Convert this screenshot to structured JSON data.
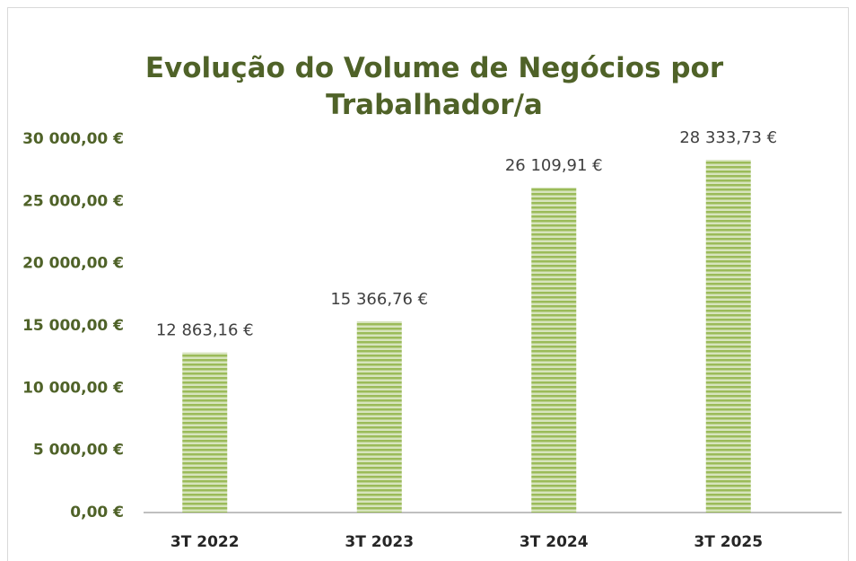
{
  "chart_data": {
    "type": "bar",
    "title": "Evolução do Volume de Negócios por Trabalhador/a",
    "categories": [
      "3T 2022",
      "3T 2023",
      "3T 2024",
      "3T 2025"
    ],
    "values": [
      12863.16,
      15366.76,
      26109.91,
      28333.73
    ],
    "value_labels": [
      "12 863,16 €",
      "15 366,76 €",
      "26 109,91 €",
      "28 333,73 €"
    ],
    "color": "#9bbb59",
    "ylim": [
      0,
      30000
    ],
    "yticks": [
      {
        "value": 0,
        "label": "0,00 €"
      },
      {
        "value": 5000,
        "label": "5 000,00 €"
      },
      {
        "value": 10000,
        "label": "10 000,00 €"
      },
      {
        "value": 15000,
        "label": "15 000,00 €"
      },
      {
        "value": 20000,
        "label": "20 000,00 €"
      },
      {
        "value": 25000,
        "label": "25 000,00 €"
      },
      {
        "value": 30000,
        "label": "30 000,00 €"
      }
    ],
    "grid": false
  }
}
